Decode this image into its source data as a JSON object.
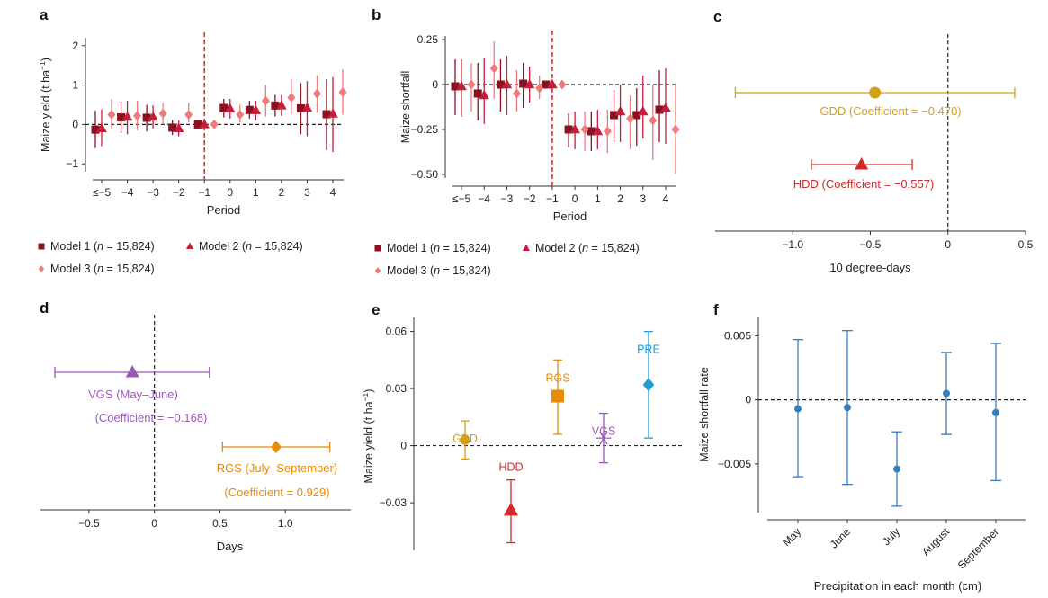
{
  "chart_data": [
    {
      "panel": "a",
      "type": "scatter",
      "ylabel": "Maize yield (t ha",
      "ylabel_sup": "−1",
      "ylabel_tail": ")",
      "xlabel": "Period",
      "categories": [
        "≤−5",
        "−4",
        "−3",
        "−2",
        "−1",
        "0",
        "1",
        "2",
        "3",
        "4"
      ],
      "ylim": [
        -1.2,
        2.2
      ],
      "yticks": [
        -1,
        0,
        1,
        2
      ],
      "yticklabels": [
        "−1",
        "0",
        "1",
        "2"
      ],
      "reference_line_y": 0,
      "event_line_x": "−1",
      "series": [
        {
          "name": "Model 1",
          "n": "15,824",
          "marker": "square",
          "color": "#8b1020",
          "values": [
            -0.13,
            0.18,
            0.17,
            -0.08,
            0,
            0.42,
            0.37,
            0.48,
            0.41,
            0.26
          ],
          "lower": [
            -0.6,
            -0.22,
            -0.18,
            -0.27,
            0,
            0.18,
            0.15,
            0.2,
            -0.25,
            -0.65
          ],
          "upper": [
            0.35,
            0.58,
            0.5,
            0.11,
            0,
            0.65,
            0.6,
            0.75,
            1.05,
            1.15
          ]
        },
        {
          "name": "Model 2",
          "n": "15,824",
          "marker": "triangle",
          "color": "#c41e3a",
          "values": [
            -0.1,
            0.19,
            0.19,
            -0.1,
            0,
            0.4,
            0.36,
            0.48,
            0.42,
            0.27
          ],
          "lower": [
            -0.55,
            -0.25,
            -0.1,
            -0.3,
            0,
            0.15,
            0.1,
            0.22,
            -0.3,
            -0.7
          ],
          "upper": [
            0.38,
            0.6,
            0.48,
            0.1,
            0,
            0.65,
            0.6,
            0.75,
            1.1,
            1.2
          ]
        },
        {
          "name": "Model 3",
          "n": "15,824",
          "marker": "diamond",
          "color": "#f07a7a",
          "values": [
            0.25,
            0.22,
            0.28,
            0.25,
            0,
            0.25,
            0.6,
            0.68,
            0.78,
            0.82
          ],
          "lower": [
            -0.1,
            -0.15,
            0.0,
            0.05,
            0,
            0.05,
            0.2,
            0.25,
            0.3,
            0.25
          ],
          "upper": [
            0.65,
            0.6,
            0.55,
            0.55,
            0,
            0.5,
            1.0,
            1.15,
            1.25,
            1.4
          ]
        }
      ]
    },
    {
      "panel": "b",
      "type": "scatter",
      "ylabel": "Maize shortfall",
      "xlabel": "Period",
      "categories": [
        "≤−5",
        "−4",
        "−3",
        "−2",
        "−1",
        "0",
        "1",
        "2",
        "3",
        "4"
      ],
      "ylim": [
        -0.52,
        0.27
      ],
      "yticks": [
        -0.5,
        -0.25,
        0,
        0.25
      ],
      "yticklabels": [
        "−0.50",
        "−0.25",
        "0",
        "0.25"
      ],
      "reference_line_y": 0,
      "event_line_x": "−1",
      "series": [
        {
          "name": "Model 1",
          "n": "15,824",
          "marker": "square",
          "color": "#8b1020",
          "values": [
            -0.01,
            -0.05,
            0.0,
            0.005,
            0,
            -0.25,
            -0.26,
            -0.17,
            -0.17,
            -0.14
          ],
          "lower": [
            -0.17,
            -0.2,
            -0.15,
            -0.13,
            0,
            -0.35,
            -0.37,
            -0.32,
            -0.34,
            -0.32
          ],
          "upper": [
            0.14,
            0.12,
            0.14,
            0.12,
            0,
            -0.16,
            -0.15,
            -0.03,
            -0.02,
            0.08
          ]
        },
        {
          "name": "Model 2",
          "n": "15,824",
          "marker": "triangle",
          "color": "#c41e3a",
          "values": [
            -0.01,
            -0.06,
            0.0,
            0.0,
            0,
            -0.25,
            -0.26,
            -0.15,
            -0.15,
            -0.13
          ],
          "lower": [
            -0.18,
            -0.22,
            -0.17,
            -0.1,
            0,
            -0.36,
            -0.36,
            -0.32,
            -0.3,
            -0.33
          ],
          "upper": [
            0.14,
            0.15,
            0.16,
            0.1,
            0,
            -0.15,
            -0.14,
            0.0,
            0.05,
            0.09
          ]
        },
        {
          "name": "Model 3",
          "n": "15,824",
          "marker": "diamond",
          "color": "#f07a7a",
          "values": [
            0.0,
            0.09,
            -0.05,
            -0.02,
            0,
            -0.25,
            -0.26,
            -0.19,
            -0.2,
            -0.25
          ],
          "lower": [
            -0.15,
            -0.08,
            -0.15,
            -0.08,
            0,
            -0.37,
            -0.38,
            -0.36,
            -0.42,
            -0.5
          ],
          "upper": [
            0.12,
            0.24,
            0.08,
            0.05,
            0,
            -0.15,
            -0.14,
            -0.06,
            0.0,
            0.0
          ]
        }
      ]
    },
    {
      "panel": "c",
      "type": "scatter",
      "xlabel": "10 degree-days",
      "xlim": [
        -1.5,
        0.5
      ],
      "xticks": [
        -1,
        -0.5,
        0,
        0.5
      ],
      "xticklabels": [
        "−1.0",
        "−0.5",
        "0",
        "0.5"
      ],
      "reference_line_x": 0,
      "series": [
        {
          "name": "GDD (Coefficient = −0.470)",
          "marker": "circle",
          "color": "#d4a017",
          "value": -0.47,
          "lower": -1.37,
          "upper": 0.43
        },
        {
          "name": "HDD (Coefficient = −0.557)",
          "marker": "triangle",
          "color": "#d62828",
          "value": -0.557,
          "lower": -0.88,
          "upper": -0.23
        }
      ]
    },
    {
      "panel": "d",
      "type": "scatter",
      "xlabel": "Days",
      "xlim": [
        -0.87,
        1.5
      ],
      "xticks": [
        -0.5,
        0,
        0.5,
        1.0
      ],
      "xticklabels": [
        "−0.5",
        "0",
        "0.5",
        "1.0"
      ],
      "reference_line_x": 0,
      "series": [
        {
          "name": "VGS (May–June)",
          "note": "(Coefficient = −0.168)",
          "marker": "triangle",
          "color": "#9b59b6",
          "value": -0.168,
          "lower": -0.76,
          "upper": 0.42
        },
        {
          "name": "RGS (July–September)",
          "note": "(Coefficient = 0.929)",
          "marker": "diamond",
          "color": "#e88a0a",
          "value": 0.929,
          "lower": 0.52,
          "upper": 1.34
        }
      ]
    },
    {
      "panel": "e",
      "type": "scatter",
      "ylabel": "Maize yield (t ha",
      "ylabel_sup": "−1",
      "ylabel_tail": ")",
      "ylim": [
        -0.055,
        0.065
      ],
      "yticks": [
        -0.03,
        0,
        0.03,
        0.06
      ],
      "yticklabels": [
        "−0.03",
        "0",
        "0.03",
        "0.06"
      ],
      "reference_line_y": 0,
      "series": [
        {
          "name": "GDD",
          "marker": "circle",
          "color": "#d4a017",
          "value": 0.003,
          "lower": -0.007,
          "upper": 0.013
        },
        {
          "name": "HDD",
          "marker": "triangle",
          "color": "#d62828",
          "value": -0.034,
          "lower": -0.051,
          "upper": -0.018
        },
        {
          "name": "RGS",
          "marker": "square",
          "color": "#e88a0a",
          "value": 0.026,
          "lower": 0.006,
          "upper": 0.045
        },
        {
          "name": "VGS",
          "marker": "star",
          "color": "#9b59b6",
          "value": 0.004,
          "lower": -0.009,
          "upper": 0.017
        },
        {
          "name": "PRE",
          "marker": "diamond",
          "color": "#1f9bd7",
          "value": 0.032,
          "lower": 0.004,
          "upper": 0.06
        }
      ]
    },
    {
      "panel": "f",
      "type": "scatter",
      "ylabel": "Maize shortfall rate",
      "xlabel": "Precipitation in each month (cm)",
      "categories": [
        "May",
        "June",
        "July",
        "August",
        "September"
      ],
      "ylim": [
        -0.0088,
        0.0065
      ],
      "yticks": [
        -0.005,
        0,
        0.005
      ],
      "yticklabels": [
        "−0.005",
        "0",
        "0.005"
      ],
      "reference_line_y": 0,
      "series": [
        {
          "color": "#3a7dbf",
          "values": [
            -0.0007,
            -0.0006,
            -0.0054,
            0.0005,
            -0.001
          ],
          "lower": [
            -0.006,
            -0.0066,
            -0.0083,
            -0.0027,
            -0.0063
          ],
          "upper": [
            0.0047,
            0.0054,
            -0.0025,
            0.0037,
            0.0044
          ]
        }
      ]
    }
  ]
}
